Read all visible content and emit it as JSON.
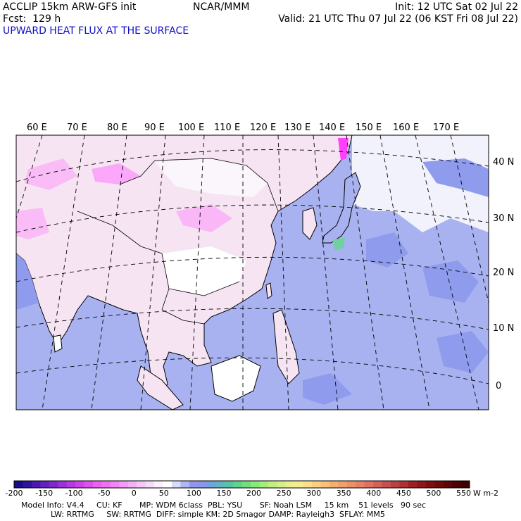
{
  "header": {
    "model": "ACCLIP 15km ARW-GFS init",
    "org": "NCAR/MMM",
    "init": "Init: 12 UTC Sat 02 Jul 22",
    "fcst": "Fcst:  129 h",
    "valid": "Valid: 21 UTC Thu 07 Jul 22 (06 KST Fri 08 Jul 22)",
    "field": "UPWARD HEAT FLUX AT THE SURFACE"
  },
  "map": {
    "lon_labels": [
      "60 E",
      "70 E",
      "80 E",
      "90 E",
      "100 E",
      "110 E",
      "120 E",
      "130 E",
      "140 E",
      "150 E",
      "160 E",
      "170 E"
    ],
    "lat_labels": [
      "40 N",
      "30 N",
      "20 N",
      "10 N",
      "0"
    ],
    "colors": {
      "land_pink": "#f6e4f2",
      "land_white": "#ffffff",
      "ocean_lavender": "#a8b2f0",
      "ocean_blue": "#8f9cee",
      "hot_pink": "#ff80ff",
      "coast": "#000000"
    }
  },
  "colorbar": {
    "ticks": [
      "-200",
      "-150",
      "-100",
      "-50",
      "0",
      "50",
      "100",
      "150",
      "200",
      "250",
      "300",
      "350",
      "400",
      "450",
      "500",
      "550"
    ],
    "units": "W m-2",
    "colors": [
      "#1a0a8c",
      "#3010a0",
      "#4a18b4",
      "#6420c4",
      "#8028d0",
      "#9c30dc",
      "#b838e4",
      "#d040ec",
      "#e050f0",
      "#ec60f4",
      "#f070f4",
      "#f484f6",
      "#f49af8",
      "#f4b0f8",
      "#f6c6fa",
      "#f8dcfc",
      "#faf0fe",
      "#ffffff",
      "#d8dcfc",
      "#b0b8f4",
      "#9098ec",
      "#8898ea",
      "#70a4dc",
      "#60b4c4",
      "#58c4a4",
      "#5cd48c",
      "#70e07c",
      "#88e878",
      "#a4ec7c",
      "#c0f080",
      "#d8f088",
      "#ecf08c",
      "#f8ec8c",
      "#fce088",
      "#fcd080",
      "#f8c078",
      "#f4b070",
      "#f0a06c",
      "#ec9068",
      "#e88064",
      "#e07060",
      "#d46058",
      "#c85050",
      "#bc4040",
      "#b03030",
      "#a02020",
      "#901418",
      "#800c10",
      "#700808",
      "#600404",
      "#500000",
      "#400000"
    ]
  },
  "footer": {
    "line1": "Model Info: V4.4     CU: KF       MP: WDM 6class  PBL: YSU       SF: Noah LSM     15 km    51 levels   90 sec",
    "line2": "LW: RRTMG     SW: RRTMG  DIFF: simple KM: 2D Smagor DAMP: Rayleigh3  SFLAY: MM5"
  }
}
